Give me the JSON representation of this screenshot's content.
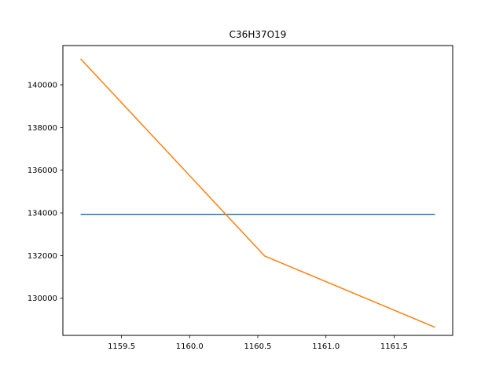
{
  "chart_data": {
    "type": "line",
    "title": "C36H37O19",
    "xlabel": "",
    "ylabel": "",
    "xlim": [
      1159.07,
      1161.93
    ],
    "ylim": [
      128260,
      141840
    ],
    "xticks": [
      1159.5,
      1160.0,
      1160.5,
      1161.0,
      1161.5
    ],
    "xtick_labels": [
      "1159.5",
      "1160.0",
      "1160.5",
      "1161.0",
      "1161.5"
    ],
    "yticks": [
      130000,
      132000,
      134000,
      136000,
      138000,
      140000
    ],
    "ytick_labels": [
      "130000",
      "132000",
      "134000",
      "136000",
      "138000",
      "140000"
    ],
    "grid": false,
    "series": [
      {
        "color": "#1f77b4",
        "x": [
          1159.2,
          1161.8
        ],
        "y": [
          133920,
          133920
        ]
      },
      {
        "color": "#ff7f0e",
        "x": [
          1159.2,
          1160.55,
          1161.8
        ],
        "y": [
          141220,
          131980,
          128640
        ]
      }
    ]
  }
}
